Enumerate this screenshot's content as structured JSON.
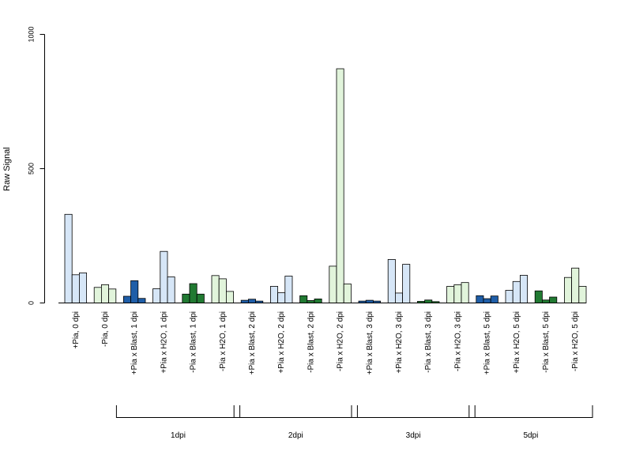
{
  "chart_data": {
    "type": "bar",
    "ylabel": "Raw Signal",
    "ylim": [
      0,
      1000
    ],
    "yticks": [
      0,
      500,
      1000
    ],
    "bars_per_group": 3,
    "colors": {
      "light_blue": "#d6e6f7",
      "light_green": "#e1f4db",
      "dark_blue": "#1f5ea8",
      "dark_green": "#217a32",
      "outline": "#000000"
    },
    "categories": [
      {
        "label": "+Pia, 0 dpi",
        "color": "light_blue",
        "values": [
          330,
          105,
          112
        ]
      },
      {
        "label": "-Pia, 0 dpi",
        "color": "light_green",
        "values": [
          58,
          68,
          52
        ]
      },
      {
        "label": "+Pia x Blast, 1 dpi",
        "color": "dark_blue",
        "values": [
          25,
          83,
          17
        ]
      },
      {
        "label": "+Pia x H2O, 1 dpi",
        "color": "light_blue",
        "values": [
          53,
          192,
          97
        ]
      },
      {
        "label": "-Pia x Blast, 1 dpi",
        "color": "dark_green",
        "values": [
          33,
          72,
          33
        ]
      },
      {
        "label": "-Pia x H2O, 1 dpi",
        "color": "light_green",
        "values": [
          102,
          90,
          43
        ]
      },
      {
        "label": "+Pia x Blast, 2 dpi",
        "color": "dark_blue",
        "values": [
          10,
          14,
          7
        ]
      },
      {
        "label": "+Pia x H2O, 2 dpi",
        "color": "light_blue",
        "values": [
          62,
          38,
          100
        ]
      },
      {
        "label": "-Pia x Blast, 2 dpi",
        "color": "dark_green",
        "values": [
          27,
          9,
          15
        ]
      },
      {
        "label": "-Pia x H2O, 2 dpi",
        "color": "light_green",
        "values": [
          137,
          872,
          71
        ]
      },
      {
        "label": "+Pia x Blast, 3 dpi",
        "color": "dark_blue",
        "values": [
          7,
          10,
          7
        ]
      },
      {
        "label": "+Pia x H2O, 3 dpi",
        "color": "light_blue",
        "values": [
          162,
          37,
          144
        ]
      },
      {
        "label": "-Pia x Blast, 3 dpi",
        "color": "dark_green",
        "values": [
          6,
          11,
          5
        ]
      },
      {
        "label": "-Pia x H2O, 3 dpi",
        "color": "light_green",
        "values": [
          62,
          68,
          76
        ]
      },
      {
        "label": "+Pia x Blast, 5 dpi",
        "color": "dark_blue",
        "values": [
          27,
          16,
          26
        ]
      },
      {
        "label": "+Pia x H2O, 5 dpi",
        "color": "light_blue",
        "values": [
          47,
          80,
          103
        ]
      },
      {
        "label": "-Pia x Blast, 5 dpi",
        "color": "dark_green",
        "values": [
          45,
          11,
          22
        ]
      },
      {
        "label": "-Pia x H2O, 5 dpi",
        "color": "light_green",
        "values": [
          95,
          130,
          62
        ]
      }
    ],
    "groups": [
      {
        "label": "1dpi",
        "from": 2,
        "to": 5
      },
      {
        "label": "2dpi",
        "from": 6,
        "to": 9
      },
      {
        "label": "3dpi",
        "from": 10,
        "to": 13
      },
      {
        "label": "5dpi",
        "from": 14,
        "to": 17
      }
    ]
  }
}
